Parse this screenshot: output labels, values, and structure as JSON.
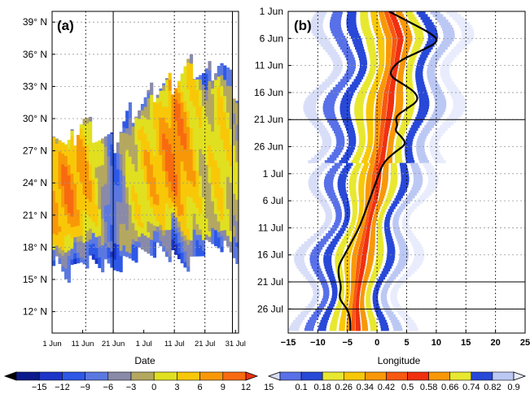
{
  "chart_data": [
    {
      "type": "heatmap",
      "panel_label": "(a)",
      "xlabel": "Date",
      "x_ticks": [
        "1 Jun",
        "11 Jun",
        "21 Jun",
        "1 Jul",
        "11 Jul",
        "21 Jul",
        "31 Jul"
      ],
      "y_ticks": [
        "12° N",
        "15° N",
        "18° N",
        "21° N",
        "24° N",
        "27° N",
        "30° N",
        "33° N",
        "36° N",
        "39° N"
      ],
      "y_values": [
        12,
        15,
        18,
        21,
        24,
        27,
        30,
        33,
        36,
        39
      ],
      "ylim": [
        10,
        40
      ],
      "xlim_days": [
        0,
        61
      ],
      "vertical_lines_days": [
        20,
        59
      ],
      "dashed_vertical_lines_days": [
        11,
        40,
        50
      ],
      "colorbar": {
        "levels": [
          "−15",
          "−12",
          "−9",
          "−6",
          "−3",
          "0",
          "3",
          "6",
          "9",
          "12",
          "15"
        ],
        "colors": [
          "#000000",
          "#0a1a8c",
          "#1c34c8",
          "#2e58e6",
          "#5a78e0",
          "#8a8aa8",
          "#b4a860",
          "#e0e020",
          "#f8c808",
          "#f89808",
          "#f86a10",
          "#f03010"
        ]
      },
      "profiles": [
        {
          "day": 0,
          "lat_range": [
            17.3,
            29.8
          ],
          "center": 23.0,
          "value": 10
        },
        {
          "day": 5,
          "lat_range": [
            15.2,
            27.0
          ],
          "center": 23.0,
          "value": 12
        },
        {
          "day": 10,
          "lat_range": [
            17.0,
            30.0
          ],
          "center": 24.5,
          "value": 10
        },
        {
          "day": 15,
          "lat_range": [
            16.5,
            28.5
          ],
          "center": 24.0,
          "value": 5
        },
        {
          "day": 20,
          "lat_range": [
            16.0,
            27.5
          ],
          "center": 23.0,
          "value": -7
        },
        {
          "day": 25,
          "lat_range": [
            17.0,
            30.5
          ],
          "center": 23.5,
          "value": 3
        },
        {
          "day": 30,
          "lat_range": [
            17.5,
            31.5
          ],
          "center": 25.0,
          "value": 7
        },
        {
          "day": 35,
          "lat_range": [
            18.0,
            33.0
          ],
          "center": 26.0,
          "value": 9
        },
        {
          "day": 40,
          "lat_range": [
            17.0,
            33.5
          ],
          "center": 27.5,
          "value": 13
        },
        {
          "day": 45,
          "lat_range": [
            16.5,
            35.0
          ],
          "center": 27.0,
          "value": 9
        },
        {
          "day": 50,
          "lat_range": [
            18.0,
            34.0
          ],
          "center": 26.0,
          "value": 3
        },
        {
          "day": 55,
          "lat_range": [
            18.5,
            35.5
          ],
          "center": 27.0,
          "value": 7
        },
        {
          "day": 61,
          "lat_range": [
            17.0,
            32.0
          ],
          "center": 25.0,
          "value": 2
        }
      ]
    },
    {
      "type": "heatmap",
      "panel_label": "(b)",
      "xlabel": "Longitude",
      "x_ticks": [
        "−15",
        "−10",
        "−5",
        "0",
        "5",
        "10",
        "15",
        "20",
        "25"
      ],
      "x_values": [
        -15,
        -10,
        -5,
        0,
        5,
        10,
        15,
        20,
        25
      ],
      "xlim": [
        -15,
        25
      ],
      "y_ticks": [
        "1 Jun",
        "6 Jun",
        "11 Jun",
        "16 Jun",
        "21 Jun",
        "26 Jun",
        "1 Jul",
        "6 Jul",
        "11 Jul",
        "16 Jul",
        "21 Jul",
        "26 Jul"
      ],
      "y_values_days": [
        0,
        5,
        10,
        15,
        20,
        25,
        30,
        35,
        40,
        45,
        50,
        55
      ],
      "ylim_days": [
        0,
        59
      ],
      "horizontal_lines_days": [
        20,
        50,
        55
      ],
      "colorbar": {
        "levels": [
          "0.1",
          "0.18",
          "0.26",
          "0.34",
          "0.42",
          "0.5",
          "0.58",
          "0.66",
          "0.74",
          "0.82",
          "0.9"
        ],
        "colors": [
          "#d8def8",
          "#5870e8",
          "#2848d8",
          "#e8e830",
          "#f8c808",
          "#f89808",
          "#f85810",
          "#f03010",
          "#f89808",
          "#e8e830",
          "#2848d8",
          "#bcc8f4",
          "#e8ecfc"
        ]
      },
      "axis_center": [
        {
          "day": 0,
          "lon": 1.5
        },
        {
          "day": 5,
          "lon": 3.0
        },
        {
          "day": 10,
          "lon": 2.5
        },
        {
          "day": 15,
          "lon": 1.5
        },
        {
          "day": 20,
          "lon": 1.0
        },
        {
          "day": 25,
          "lon": 0.5
        },
        {
          "day": 30,
          "lon": -0.5
        },
        {
          "day": 35,
          "lon": -1.0
        },
        {
          "day": 40,
          "lon": -2.0
        },
        {
          "day": 45,
          "lon": -3.0
        },
        {
          "day": 50,
          "lon": -3.5
        },
        {
          "day": 55,
          "lon": -4.0
        },
        {
          "day": 59,
          "lon": -4.0
        }
      ],
      "black_line": [
        {
          "day": 0,
          "lon": 2.0
        },
        {
          "day": 2,
          "lon": 5.5
        },
        {
          "day": 4,
          "lon": 9.0
        },
        {
          "day": 5.5,
          "lon": 10.5
        },
        {
          "day": 7,
          "lon": 8.0
        },
        {
          "day": 9,
          "lon": 4.0
        },
        {
          "day": 10.5,
          "lon": 2.5
        },
        {
          "day": 12,
          "lon": 2.2
        },
        {
          "day": 13.5,
          "lon": 4.5
        },
        {
          "day": 15,
          "lon": 6.5
        },
        {
          "day": 16.5,
          "lon": 7.0
        },
        {
          "day": 18,
          "lon": 5.0
        },
        {
          "day": 19.5,
          "lon": 3.0
        },
        {
          "day": 21,
          "lon": 3.5
        },
        {
          "day": 22,
          "lon": 3.0
        },
        {
          "day": 23,
          "lon": 4.0
        },
        {
          "day": 24.5,
          "lon": 5.0
        },
        {
          "day": 26,
          "lon": 3.0
        },
        {
          "day": 28,
          "lon": 1.0
        },
        {
          "day": 31,
          "lon": 0.0
        },
        {
          "day": 34,
          "lon": -1.0
        },
        {
          "day": 37,
          "lon": -2.0
        },
        {
          "day": 40,
          "lon": -3.0
        },
        {
          "day": 43,
          "lon": -4.5
        },
        {
          "day": 45,
          "lon": -5.5
        },
        {
          "day": 47,
          "lon": -6.5
        },
        {
          "day": 49,
          "lon": -6.5
        },
        {
          "day": 51,
          "lon": -6.0
        },
        {
          "day": 53,
          "lon": -6.5
        },
        {
          "day": 55,
          "lon": -5.0
        },
        {
          "day": 57,
          "lon": -4.5
        },
        {
          "day": 59,
          "lon": -4.5
        }
      ]
    }
  ]
}
